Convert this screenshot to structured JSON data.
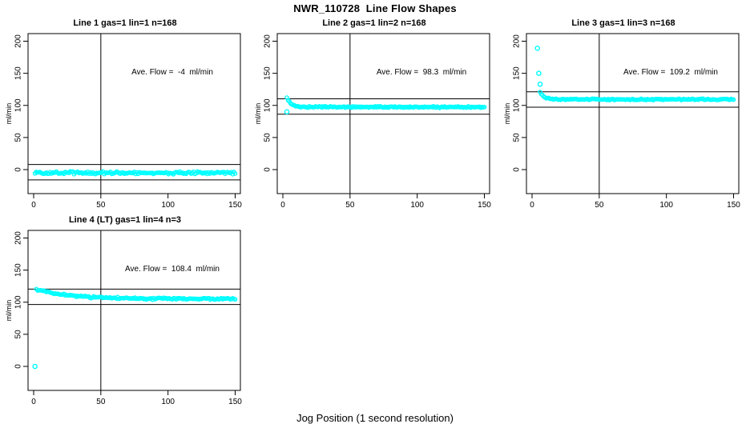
{
  "figure": {
    "title": "NWR_110728  Line Flow Shapes",
    "xlabel": "Jog Position (1 second resolution)",
    "background": "#ffffff",
    "point_color": "#00ffff",
    "line_color": "#000000"
  },
  "chart_data": [
    {
      "type": "scatter",
      "title": "Line 1 gas=1 lin=1 n=168",
      "ylabel": "ml/min",
      "annotation": "Ave. Flow =  -4  ml/min",
      "ave_flow_ml_min": -4,
      "xticks": [
        0,
        50,
        100,
        150
      ],
      "yticks": [
        0,
        50,
        100,
        150,
        200
      ],
      "xlim": [
        -6.3,
        156.3
      ],
      "ylim": [
        -37.4,
        211.8
      ],
      "grid": false,
      "ref_hlines": [
        8,
        -16
      ],
      "ref_vline": 50,
      "series": {
        "x_start": 1,
        "x_end": 150,
        "n": 160,
        "start": -5,
        "steady": -5,
        "tau": 3,
        "noise": 2.5,
        "seed": 1,
        "outliers": []
      }
    },
    {
      "type": "scatter",
      "title": "Line 2 gas=1 lin=2 n=168",
      "ylabel": "ml/min",
      "annotation": "Ave. Flow =  98.3  ml/min",
      "ave_flow_ml_min": 98.3,
      "xticks": [
        0,
        50,
        100,
        150
      ],
      "yticks": [
        0,
        50,
        100,
        150,
        200
      ],
      "xlim": [
        -6.3,
        156.3
      ],
      "ylim": [
        -37.4,
        211.8
      ],
      "grid": false,
      "ref_hlines": [
        110.3,
        86.3
      ],
      "ref_vline": 50,
      "series": {
        "x_start": 3,
        "x_end": 150,
        "n": 160,
        "start": 112,
        "steady": 97.5,
        "tau": 3,
        "noise": 1.4,
        "seed": 2,
        "outliers": [
          [
            3,
            90
          ]
        ]
      }
    },
    {
      "type": "scatter",
      "title": "Line 3 gas=1 lin=3 n=168",
      "ylabel": "ml/min",
      "annotation": "Ave. Flow =  109.2  ml/min",
      "ave_flow_ml_min": 109.2,
      "xticks": [
        0,
        50,
        100,
        150
      ],
      "yticks": [
        0,
        50,
        100,
        150,
        200
      ],
      "xlim": [
        -6.3,
        156.3
      ],
      "ylim": [
        -37.4,
        211.8
      ],
      "grid": false,
      "ref_hlines": [
        121.2,
        97.2
      ],
      "ref_vline": 50,
      "series": {
        "x_start": 6,
        "x_end": 150,
        "n": 160,
        "start": 121,
        "steady": 109.3,
        "tau": 3,
        "noise": 1.2,
        "seed": 3,
        "outliers": [
          [
            4,
            189
          ],
          [
            5,
            150
          ],
          [
            6,
            133
          ]
        ]
      }
    },
    {
      "type": "scatter",
      "title": "Line 4 (LT) gas=1 lin=4 n=3",
      "ylabel": "ml/min",
      "annotation": "Ave. Flow =  108.4  ml/min",
      "ave_flow_ml_min": 108.4,
      "xticks": [
        0,
        50,
        100,
        150
      ],
      "yticks": [
        0,
        50,
        100,
        150,
        200
      ],
      "xlim": [
        -6.3,
        156.3
      ],
      "ylim": [
        -37.4,
        211.8
      ],
      "grid": false,
      "ref_hlines": [
        120.4,
        96.4
      ],
      "ref_vline": 50,
      "series": {
        "x_start": 2,
        "x_end": 150,
        "n": 160,
        "start": 120,
        "steady": 105,
        "tau": 25,
        "noise": 1.8,
        "seed": 4,
        "outliers": [
          [
            1,
            0
          ]
        ]
      }
    }
  ]
}
